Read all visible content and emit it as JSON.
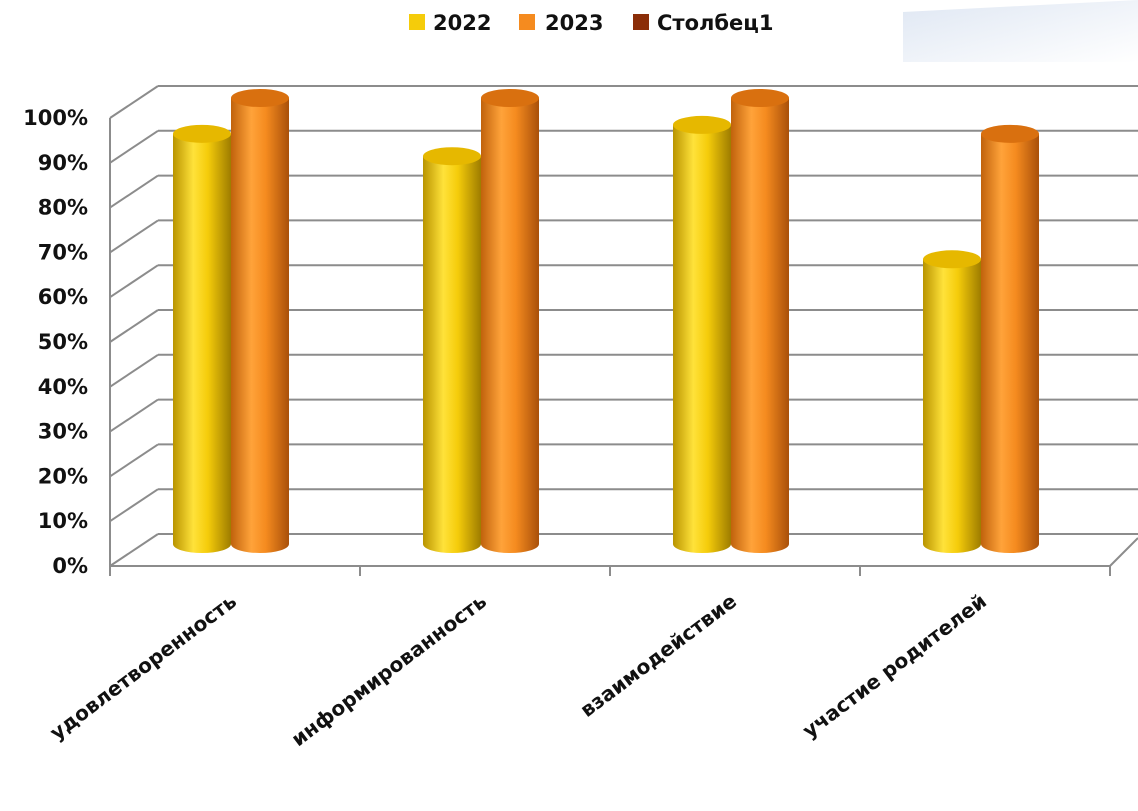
{
  "chart_data": {
    "type": "bar",
    "categories": [
      "удовлетворенность",
      "информированность",
      "взаимодействие",
      "участие родителей"
    ],
    "series": [
      {
        "name": "2022",
        "values": [
          92,
          87,
          94,
          64
        ],
        "color": "#f5cc0a"
      },
      {
        "name": "2023",
        "values": [
          100,
          100,
          100,
          92
        ],
        "color": "#f58b1f"
      },
      {
        "name": "Столбец1",
        "values": [
          null,
          null,
          null,
          null
        ],
        "color": "#8b2e08"
      }
    ],
    "ylim": [
      0,
      100
    ],
    "yticks": [
      "0%",
      "10%",
      "20%",
      "30%",
      "40%",
      "50%",
      "60%",
      "70%",
      "80%",
      "90%",
      "100%"
    ],
    "grid": true,
    "legend": "top-center"
  }
}
